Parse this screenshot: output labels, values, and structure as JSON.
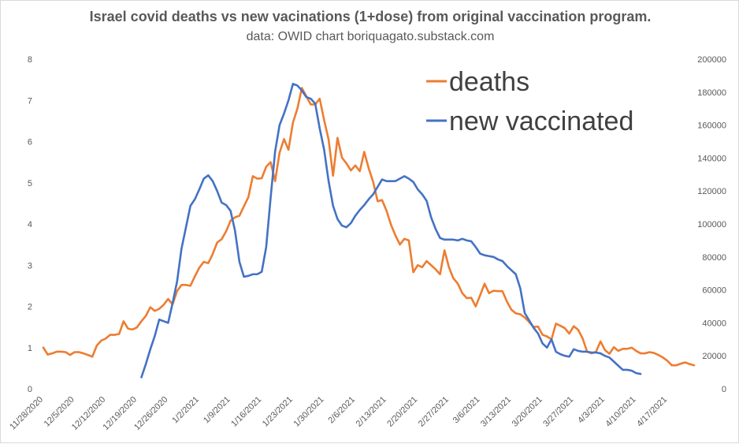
{
  "chart_data": {
    "type": "line",
    "title": "Israel covid deaths vs new vacinations (1+dose) from original vaccination program.",
    "subtitle": "data: OWID  chart boriquagato.substack.com",
    "xlabel": "",
    "ylabel_left": "",
    "ylabel_right": "",
    "ylim_left": [
      0,
      8
    ],
    "ylim_right": [
      0,
      200000
    ],
    "yticks_left": [
      "0",
      "1",
      "2",
      "3",
      "4",
      "5",
      "6",
      "7",
      "8"
    ],
    "yticks_right": [
      "0",
      "20000",
      "40000",
      "60000",
      "80000",
      "100000",
      "120000",
      "140000",
      "160000",
      "180000",
      "200000"
    ],
    "x_tick_labels": [
      "11/28/2020",
      "12/5/2020",
      "12/12/2020",
      "12/19/2020",
      "12/26/2020",
      "1/2/2021",
      "1/9/2021",
      "1/16/2021",
      "1/23/2021",
      "1/30/2021",
      "2/6/2021",
      "2/13/2021",
      "2/20/2021",
      "2/27/2021",
      "3/6/2021",
      "3/13/2021",
      "3/20/2021",
      "3/27/2021",
      "4/3/2021",
      "4/10/2021",
      "4/17/2021"
    ],
    "legend_position": "top-right",
    "series": [
      {
        "name": "deaths",
        "axis": "left",
        "color": "#ED7D31",
        "values": [
          1.0,
          0.83,
          0.86,
          0.9,
          0.9,
          0.89,
          0.82,
          0.89,
          0.89,
          0.86,
          0.82,
          0.78,
          1.05,
          1.17,
          1.22,
          1.31,
          1.31,
          1.33,
          1.64,
          1.46,
          1.44,
          1.49,
          1.64,
          1.77,
          1.98,
          1.89,
          1.94,
          2.04,
          2.18,
          2.05,
          2.37,
          2.52,
          2.52,
          2.5,
          2.73,
          2.94,
          3.08,
          3.05,
          3.27,
          3.55,
          3.63,
          3.82,
          4.08,
          4.16,
          4.2,
          4.43,
          4.65,
          5.16,
          5.1,
          5.11,
          5.39,
          5.5,
          5.04,
          5.73,
          6.06,
          5.8,
          6.46,
          6.8,
          7.3,
          7.1,
          6.9,
          6.9,
          7.04,
          6.52,
          6.05,
          5.17,
          6.09,
          5.61,
          5.47,
          5.3,
          5.42,
          5.28,
          5.75,
          5.35,
          5.02,
          4.55,
          4.58,
          4.32,
          3.98,
          3.72,
          3.5,
          3.64,
          3.6,
          2.83,
          3.0,
          2.95,
          3.1,
          3.0,
          2.9,
          2.78,
          3.36,
          2.95,
          2.68,
          2.55,
          2.32,
          2.2,
          2.21,
          2.0,
          2.27,
          2.55,
          2.32,
          2.38,
          2.37,
          2.37,
          2.12,
          1.92,
          1.83,
          1.81,
          1.73,
          1.62,
          1.5,
          1.51,
          1.31,
          1.27,
          1.2,
          1.58,
          1.53,
          1.47,
          1.34,
          1.52,
          1.43,
          1.22,
          0.9,
          0.86,
          0.9,
          1.15,
          0.94,
          0.85,
          1.01,
          0.92,
          0.97,
          0.97,
          1.0,
          0.92,
          0.86,
          0.86,
          0.89,
          0.87,
          0.82,
          0.76,
          0.68,
          0.57,
          0.57,
          0.61,
          0.64,
          0.6,
          0.57
        ]
      },
      {
        "name": "new vaccinated",
        "axis": "right",
        "color": "#4472C4",
        "start_index": 22,
        "values": [
          7000,
          15000,
          24000,
          32000,
          42000,
          41000,
          40000,
          52000,
          65000,
          85000,
          98000,
          111000,
          115000,
          121000,
          127500,
          129500,
          126000,
          120000,
          113000,
          111500,
          108000,
          96000,
          77000,
          68000,
          68500,
          69500,
          69500,
          71000,
          86000,
          116000,
          144000,
          160000,
          167000,
          175000,
          185000,
          184000,
          181000,
          177000,
          176000,
          173000,
          158000,
          145000,
          126000,
          111000,
          103000,
          99000,
          98000,
          100500,
          105000,
          108500,
          111500,
          115000,
          118000,
          122500,
          127000,
          126000,
          126000,
          126000,
          127500,
          129000,
          127500,
          125500,
          121000,
          118000,
          114000,
          104000,
          97000,
          91500,
          90500,
          90500,
          90500,
          90000,
          91000,
          90000,
          89500,
          86000,
          82000,
          81000,
          80500,
          80000,
          78500,
          77500,
          74500,
          72000,
          69500,
          61000,
          46000,
          41500,
          37000,
          33500,
          27500,
          25000,
          30000,
          22500,
          21000,
          20000,
          19500,
          24000,
          23000,
          22500,
          22500,
          22000,
          22000,
          21500,
          20000,
          19000,
          16500,
          14000,
          11500,
          11500,
          11000,
          9500,
          9000
        ]
      }
    ]
  }
}
